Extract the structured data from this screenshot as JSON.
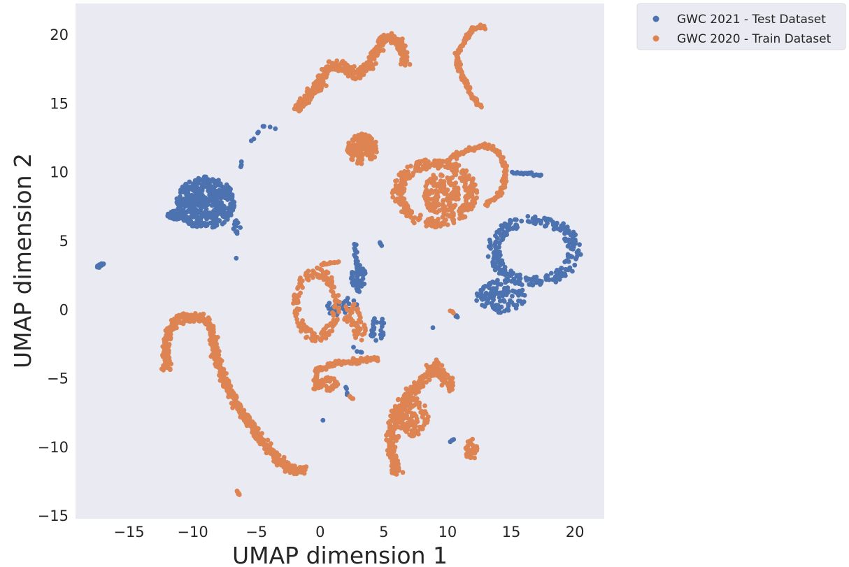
{
  "chart_data": {
    "type": "scatter",
    "title": "",
    "xlabel": "UMAP dimension 1",
    "ylabel": "UMAP dimension 2",
    "xlim": [
      -19.2,
      22.3
    ],
    "ylim": [
      -15.2,
      22.3
    ],
    "xticks": [
      -15,
      -10,
      -5,
      0,
      5,
      10,
      15,
      20
    ],
    "yticks": [
      -15,
      -10,
      -5,
      0,
      5,
      10,
      15,
      20
    ],
    "xtick_labels": [
      "−15",
      "−10",
      "−5",
      "0",
      "5",
      "10",
      "15",
      "20"
    ],
    "ytick_labels": [
      "−15",
      "−10",
      "−5",
      "0",
      "5",
      "10",
      "15",
      "20"
    ],
    "grid": false,
    "background": "#eaeaf2",
    "legend_position": "outside-upper-right",
    "series": [
      {
        "name": "GWC 2021 - Test Dataset",
        "color": "#4c72b0",
        "clusters": [
          {
            "kind": "blob",
            "cx": -9.0,
            "cy": 7.8,
            "rx": 2.3,
            "ry": 1.9,
            "n": 420
          },
          {
            "kind": "blob",
            "cx": -11.3,
            "cy": 6.9,
            "rx": 0.7,
            "ry": 0.3,
            "n": 40
          },
          {
            "kind": "blob",
            "cx": -6.5,
            "cy": 6.0,
            "rx": 0.3,
            "ry": 0.6,
            "n": 15
          },
          {
            "kind": "line",
            "points": [
              [
                -17.5,
                3.1
              ],
              [
                -17.0,
                3.4
              ]
            ],
            "n": 10
          },
          {
            "kind": "line",
            "points": [
              [
                -5.5,
                12.2
              ],
              [
                -4.5,
                13.4
              ],
              [
                -3.5,
                13.2
              ]
            ],
            "n": 8
          },
          {
            "kind": "line",
            "points": [
              [
                -6.2,
                10.8
              ],
              [
                -6.2,
                10.4
              ]
            ],
            "n": 3
          },
          {
            "kind": "line",
            "points": [
              [
                -6.5,
                3.7
              ]
            ],
            "n": 1
          },
          {
            "kind": "ring",
            "cx": 16.8,
            "cy": 4.3,
            "rx": 3.4,
            "ry": 2.4,
            "n": 260
          },
          {
            "kind": "blob",
            "cx": 14.2,
            "cy": 1.0,
            "rx": 2.0,
            "ry": 1.2,
            "n": 110
          },
          {
            "kind": "line",
            "points": [
              [
                15.0,
                10.0
              ],
              [
                17.4,
                9.8
              ]
            ],
            "n": 20
          },
          {
            "kind": "line",
            "points": [
              [
                2.7,
                4.9
              ],
              [
                2.9,
                3.0
              ],
              [
                3.0,
                1.5
              ]
            ],
            "n": 25
          },
          {
            "kind": "blob",
            "cx": 3.0,
            "cy": 2.3,
            "rx": 0.6,
            "ry": 1.0,
            "n": 45
          },
          {
            "kind": "blob",
            "cx": 1.8,
            "cy": 0.2,
            "rx": 1.4,
            "ry": 0.7,
            "n": 40
          },
          {
            "kind": "blob",
            "cx": 4.5,
            "cy": -1.4,
            "rx": 0.6,
            "ry": 1.0,
            "n": 25
          },
          {
            "kind": "line",
            "points": [
              [
                4.6,
                4.9
              ],
              [
                4.9,
                4.7
              ]
            ],
            "n": 3
          },
          {
            "kind": "line",
            "points": [
              [
                2.0,
                -5.5
              ],
              [
                2.2,
                -6.3
              ]
            ],
            "n": 4
          },
          {
            "kind": "line",
            "points": [
              [
                0.2,
                -8.1
              ]
            ],
            "n": 1
          },
          {
            "kind": "line",
            "points": [
              [
                8.8,
                -1.2
              ]
            ],
            "n": 1
          },
          {
            "kind": "line",
            "points": [
              [
                10.2,
                -9.6
              ],
              [
                10.5,
                -9.4
              ]
            ],
            "n": 3
          },
          {
            "kind": "line",
            "points": [
              [
                10.6,
                -0.4
              ],
              [
                10.9,
                -0.5
              ]
            ],
            "n": 3
          },
          {
            "kind": "line",
            "points": [
              [
                2.5,
                -2.6
              ],
              [
                3.4,
                -3.3
              ]
            ],
            "n": 4
          }
        ]
      },
      {
        "name": "GWC 2020 - Train Dataset",
        "color": "#dd8452",
        "clusters": [
          {
            "kind": "line",
            "points": [
              [
                -2.0,
                14.6
              ],
              [
                -1.0,
                15.5
              ],
              [
                0.0,
                16.5
              ],
              [
                0.5,
                17.5
              ],
              [
                1.5,
                17.8
              ],
              [
                3.0,
                17.0
              ],
              [
                4.0,
                18.0
              ],
              [
                4.6,
                19.2
              ],
              [
                5.4,
                20.0
              ],
              [
                6.6,
                19.0
              ],
              [
                6.6,
                17.8
              ]
            ],
            "n": 340,
            "w": 0.55
          },
          {
            "kind": "line",
            "points": [
              [
                13.0,
                20.6
              ],
              [
                12.0,
                20.5
              ],
              [
                11.3,
                19.5
              ],
              [
                10.7,
                18.5
              ],
              [
                11.0,
                17.5
              ],
              [
                11.3,
                16.5
              ],
              [
                12.0,
                15.5
              ],
              [
                12.6,
                14.7
              ]
            ],
            "n": 110,
            "w": 0.3
          },
          {
            "kind": "blob",
            "cx": 3.3,
            "cy": 11.7,
            "rx": 1.2,
            "ry": 1.1,
            "n": 150
          },
          {
            "kind": "ring",
            "cx": 9.0,
            "cy": 8.5,
            "rx": 3.1,
            "ry": 2.3,
            "n": 330
          },
          {
            "kind": "blob",
            "cx": 9.5,
            "cy": 8.4,
            "rx": 1.4,
            "ry": 1.6,
            "n": 150
          },
          {
            "kind": "line",
            "points": [
              [
                10.0,
                10.9
              ],
              [
                11.5,
                11.6
              ],
              [
                13.0,
                12.0
              ],
              [
                14.0,
                11.5
              ],
              [
                14.6,
                10.3
              ],
              [
                14.2,
                8.5
              ],
              [
                13.0,
                7.6
              ]
            ],
            "n": 110,
            "w": 0.25
          },
          {
            "kind": "line",
            "points": [
              [
                -12.0,
                -4.4
              ],
              [
                -12.2,
                -2.5
              ],
              [
                -11.7,
                -1.2
              ],
              [
                -10.8,
                -0.5
              ],
              [
                -9.5,
                -0.4
              ],
              [
                -8.6,
                -1.2
              ],
              [
                -8.3,
                -2.8
              ],
              [
                -8.0,
                -4.0
              ],
              [
                -7.2,
                -5.5
              ],
              [
                -6.5,
                -7.0
              ],
              [
                -5.5,
                -8.3
              ],
              [
                -4.5,
                -9.6
              ],
              [
                -3.5,
                -10.7
              ],
              [
                -2.4,
                -11.6
              ],
              [
                -1.1,
                -11.7
              ]
            ],
            "n": 540,
            "w": 0.5
          },
          {
            "kind": "line",
            "points": [
              [
                -6.6,
                -13.2
              ],
              [
                -6.3,
                -13.5
              ]
            ],
            "n": 6,
            "w": 0.1
          },
          {
            "kind": "ring",
            "cx": -0.3,
            "cy": 0.4,
            "rx": 1.7,
            "ry": 2.5,
            "n": 170
          },
          {
            "kind": "line",
            "points": [
              [
                0.0,
                3.3
              ],
              [
                1.5,
                3.5
              ]
            ],
            "n": 12,
            "w": 0.15
          },
          {
            "kind": "blob",
            "cx": 2.5,
            "cy": -0.3,
            "rx": 0.7,
            "ry": 0.8,
            "n": 30
          },
          {
            "kind": "blob",
            "cx": 3.1,
            "cy": -1.5,
            "rx": 0.5,
            "ry": 0.8,
            "n": 30
          },
          {
            "kind": "line",
            "points": [
              [
                -0.3,
                -5.8
              ],
              [
                -0.3,
                -4.4
              ],
              [
                1.0,
                -4.0
              ],
              [
                2.5,
                -3.8
              ],
              [
                4.0,
                -3.5
              ],
              [
                4.6,
                -3.6
              ]
            ],
            "n": 110,
            "w": 0.3
          },
          {
            "kind": "blob",
            "cx": 0.6,
            "cy": -5.4,
            "rx": 0.8,
            "ry": 0.5,
            "n": 40
          },
          {
            "kind": "line",
            "points": [
              [
                2.3,
                -6.3
              ],
              [
                2.6,
                -6.5
              ]
            ],
            "n": 4,
            "w": 0.1
          },
          {
            "kind": "line",
            "points": [
              [
                6.0,
                -12.0
              ],
              [
                5.6,
                -10.0
              ],
              [
                5.6,
                -8.5
              ],
              [
                6.3,
                -7.0
              ],
              [
                7.2,
                -6.0
              ],
              [
                8.2,
                -5.0
              ],
              [
                8.8,
                -4.0
              ],
              [
                9.6,
                -4.6
              ],
              [
                10.4,
                -5.8
              ]
            ],
            "n": 270,
            "w": 0.65
          },
          {
            "kind": "blob",
            "cx": 7.3,
            "cy": -7.8,
            "rx": 1.2,
            "ry": 1.4,
            "n": 110
          },
          {
            "kind": "blob",
            "cx": 11.9,
            "cy": -10.2,
            "rx": 0.5,
            "ry": 0.8,
            "n": 35
          },
          {
            "kind": "line",
            "points": [
              [
                10.2,
                0.0
              ],
              [
                10.5,
                -0.3
              ]
            ],
            "n": 4,
            "w": 0.1
          }
        ]
      }
    ]
  }
}
